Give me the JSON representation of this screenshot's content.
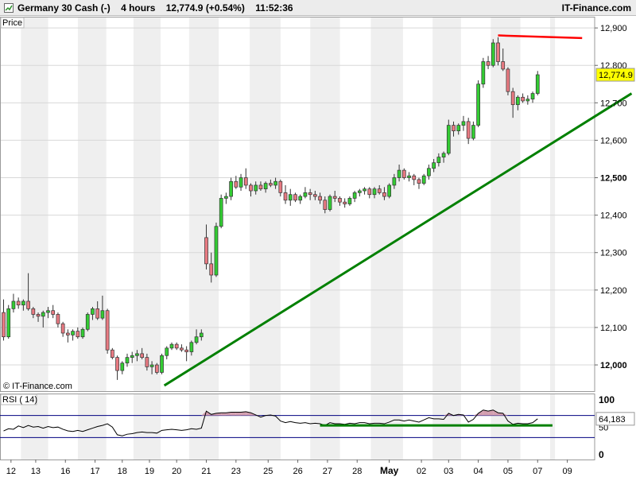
{
  "header": {
    "instrument": "Germany 30 Cash (-)",
    "timeframe": "4 hours",
    "last_price": "12,774.9",
    "change": "(+0.54%)",
    "time": "11:52:36",
    "brand": "IT-Finance.com"
  },
  "colors": {
    "bull": "#33cc33",
    "bear": "#e87a82",
    "trendline": "#008000",
    "resistance": "#ff0000",
    "price_label_bg": "#ffff00",
    "rsi_line": "#000000",
    "rsi_fill": "#d4a0b0",
    "rsi_level": "#000080",
    "band": "#efefef"
  },
  "chart_data": [
    {
      "type": "candlestick",
      "panel_label": "Price",
      "copyright": "© IT-Finance.com",
      "ylim": [
        11930,
        12930
      ],
      "yticks": [
        12000,
        12100,
        12200,
        12300,
        12400,
        12500,
        12600,
        12700,
        12800,
        12900
      ],
      "ytick_labels": [
        "12,000",
        "12,100",
        "12,200",
        "12,300",
        "12,400",
        "12,500",
        "12,600",
        "12,700",
        "12,800",
        "12,900"
      ],
      "current_price": 12774.9,
      "current_price_label": "12,774.9",
      "x_labels": [
        "12",
        "13",
        "16",
        "17",
        "18",
        "19",
        "20",
        "21",
        "23",
        "25",
        "26",
        "27",
        "28",
        "May",
        "02",
        "03",
        "04",
        "05",
        "07",
        "09"
      ],
      "x_label_bar_index": [
        1.5,
        6.5,
        12.5,
        18.5,
        24,
        29.5,
        35,
        41,
        47,
        53.5,
        59.5,
        65.5,
        71.5,
        78,
        84.5,
        90,
        96,
        102,
        108,
        114
      ],
      "grid": true,
      "candles": [
        [
          12140,
          12175,
          12065,
          12075
        ],
        [
          12075,
          12160,
          12070,
          12150
        ],
        [
          12150,
          12190,
          12140,
          12170
        ],
        [
          12170,
          12180,
          12150,
          12160
        ],
        [
          12160,
          12175,
          12145,
          12170
        ],
        [
          12170,
          12245,
          12145,
          12150
        ],
        [
          12150,
          12155,
          12125,
          12135
        ],
        [
          12135,
          12140,
          12115,
          12130
        ],
        [
          12130,
          12145,
          12100,
          12140
        ],
        [
          12140,
          12155,
          12125,
          12145
        ],
        [
          12145,
          12160,
          12125,
          12135
        ],
        [
          12135,
          12140,
          12100,
          12110
        ],
        [
          12110,
          12115,
          12075,
          12085
        ],
        [
          12085,
          12095,
          12060,
          12080
        ],
        [
          12080,
          12095,
          12065,
          12090
        ],
        [
          12090,
          12100,
          12070,
          12075
        ],
        [
          12075,
          12100,
          12070,
          12095
        ],
        [
          12095,
          12140,
          12090,
          12135
        ],
        [
          12135,
          12155,
          12120,
          12150
        ],
        [
          12150,
          12170,
          12120,
          12125
        ],
        [
          12125,
          12185,
          12120,
          12145
        ],
        [
          12145,
          12150,
          12030,
          12040
        ],
        [
          12040,
          12045,
          12015,
          12020
        ],
        [
          12020,
          12025,
          11960,
          11985
        ],
        [
          11985,
          12010,
          11975,
          12005
        ],
        [
          12005,
          12030,
          11995,
          12020
        ],
        [
          12020,
          12035,
          12005,
          12025
        ],
        [
          12025,
          12040,
          12010,
          12030
        ],
        [
          12030,
          12045,
          12015,
          12020
        ],
        [
          12020,
          12030,
          11985,
          11995
        ],
        [
          11995,
          12010,
          11975,
          12000
        ],
        [
          12000,
          12005,
          11975,
          11980
        ],
        [
          11980,
          12030,
          11975,
          12025
        ],
        [
          12025,
          12050,
          12015,
          12045
        ],
        [
          12045,
          12060,
          12040,
          12055
        ],
        [
          12055,
          12060,
          12040,
          12045
        ],
        [
          12045,
          12055,
          12035,
          12040
        ],
        [
          12040,
          12050,
          12010,
          12035
        ],
        [
          12035,
          12065,
          12025,
          12060
        ],
        [
          12060,
          12095,
          12055,
          12075
        ],
        [
          12075,
          12095,
          12065,
          12085
        ],
        [
          12340,
          12375,
          12255,
          12270
        ],
        [
          12270,
          12300,
          12220,
          12240
        ],
        [
          12240,
          12380,
          12235,
          12370
        ],
        [
          12370,
          12455,
          12365,
          12445
        ],
        [
          12445,
          12460,
          12430,
          12450
        ],
        [
          12450,
          12500,
          12440,
          12490
        ],
        [
          12490,
          12505,
          12470,
          12475
        ],
        [
          12475,
          12510,
          12465,
          12500
        ],
        [
          12500,
          12525,
          12470,
          12480
        ],
        [
          12480,
          12485,
          12450,
          12465
        ],
        [
          12465,
          12490,
          12455,
          12480
        ],
        [
          12480,
          12490,
          12465,
          12470
        ],
        [
          12470,
          12490,
          12460,
          12485
        ],
        [
          12485,
          12495,
          12475,
          12480
        ],
        [
          12480,
          12500,
          12470,
          12490
        ],
        [
          12490,
          12495,
          12450,
          12460
        ],
        [
          12460,
          12480,
          12430,
          12440
        ],
        [
          12440,
          12470,
          12425,
          12455
        ],
        [
          12455,
          12460,
          12435,
          12440
        ],
        [
          12440,
          12455,
          12430,
          12450
        ],
        [
          12450,
          12475,
          12445,
          12460
        ],
        [
          12460,
          12470,
          12440,
          12455
        ],
        [
          12455,
          12465,
          12440,
          12450
        ],
        [
          12450,
          12460,
          12430,
          12440
        ],
        [
          12440,
          12450,
          12405,
          12415
        ],
        [
          12415,
          12455,
          12410,
          12450
        ],
        [
          12450,
          12465,
          12435,
          12445
        ],
        [
          12445,
          12450,
          12425,
          12435
        ],
        [
          12435,
          12445,
          12420,
          12430
        ],
        [
          12430,
          12450,
          12425,
          12445
        ],
        [
          12445,
          12465,
          12435,
          12460
        ],
        [
          12460,
          12470,
          12450,
          12465
        ],
        [
          12465,
          12475,
          12455,
          12470
        ],
        [
          12470,
          12475,
          12445,
          12455
        ],
        [
          12455,
          12475,
          12445,
          12470
        ],
        [
          12470,
          12480,
          12455,
          12460
        ],
        [
          12460,
          12475,
          12440,
          12450
        ],
        [
          12450,
          12485,
          12445,
          12480
        ],
        [
          12480,
          12510,
          12470,
          12500
        ],
        [
          12500,
          12535,
          12490,
          12520
        ],
        [
          12520,
          12525,
          12495,
          12500
        ],
        [
          12500,
          12515,
          12490,
          12505
        ],
        [
          12505,
          12510,
          12480,
          12495
        ],
        [
          12495,
          12500,
          12470,
          12485
        ],
        [
          12485,
          12510,
          12480,
          12505
        ],
        [
          12505,
          12535,
          12495,
          12525
        ],
        [
          12525,
          12550,
          12515,
          12540
        ],
        [
          12540,
          12565,
          12530,
          12555
        ],
        [
          12555,
          12570,
          12540,
          12565
        ],
        [
          12565,
          12655,
          12560,
          12640
        ],
        [
          12640,
          12650,
          12610,
          12625
        ],
        [
          12625,
          12645,
          12615,
          12640
        ],
        [
          12640,
          12665,
          12625,
          12650
        ],
        [
          12650,
          12660,
          12590,
          12605
        ],
        [
          12605,
          12650,
          12600,
          12640
        ],
        [
          12640,
          12760,
          12635,
          12750
        ],
        [
          12750,
          12820,
          12740,
          12810
        ],
        [
          12810,
          12825,
          12790,
          12800
        ],
        [
          12800,
          12870,
          12795,
          12860
        ],
        [
          12860,
          12875,
          12800,
          12810
        ],
        [
          12810,
          12845,
          12785,
          12790
        ],
        [
          12790,
          12795,
          12720,
          12730
        ],
        [
          12730,
          12740,
          12660,
          12695
        ],
        [
          12695,
          12720,
          12680,
          12715
        ],
        [
          12715,
          12725,
          12700,
          12705
        ],
        [
          12705,
          12720,
          12695,
          12710
        ],
        [
          12710,
          12730,
          12700,
          12725
        ],
        [
          12725,
          12785,
          12720,
          12775
        ]
      ],
      "trendline_support": [
        [
          32.5,
          11945
        ],
        [
          127,
          12725
        ]
      ],
      "trendline_resistance": [
        [
          100,
          12880
        ],
        [
          117,
          12873
        ]
      ]
    },
    {
      "type": "line",
      "panel_label": "RSI ( 14)",
      "ylim": [
        -10,
        110
      ],
      "yticks": [
        0,
        50,
        100
      ],
      "ytick_labels": [
        "0",
        "50",
        "100"
      ],
      "levels": [
        30,
        70
      ],
      "current_value_label": "64,183",
      "values": [
        42,
        46,
        45,
        51,
        48,
        52,
        49,
        50,
        47,
        50,
        48,
        49,
        45,
        42,
        41,
        43,
        41,
        44,
        47,
        50,
        52,
        55,
        49,
        35,
        33,
        36,
        37,
        39,
        40,
        39,
        39,
        38,
        43,
        44,
        45,
        44,
        43,
        44,
        46,
        45,
        47,
        78,
        72,
        74,
        75,
        75,
        76,
        76,
        76,
        77,
        75,
        71,
        67,
        70,
        71,
        69,
        60,
        57,
        59,
        57,
        56,
        57,
        55,
        56,
        55,
        52,
        57,
        55,
        55,
        54,
        56,
        55,
        57,
        57,
        55,
        56,
        56,
        55,
        58,
        62,
        62,
        60,
        62,
        60,
        58,
        62,
        66,
        64,
        64,
        63,
        74,
        70,
        72,
        71,
        58,
        63,
        74,
        80,
        78,
        80,
        75,
        74,
        60,
        54,
        56,
        55,
        55,
        57,
        64
      ],
      "support_line": [
        [
          64,
          52
        ],
        [
          111,
          52
        ]
      ]
    }
  ]
}
